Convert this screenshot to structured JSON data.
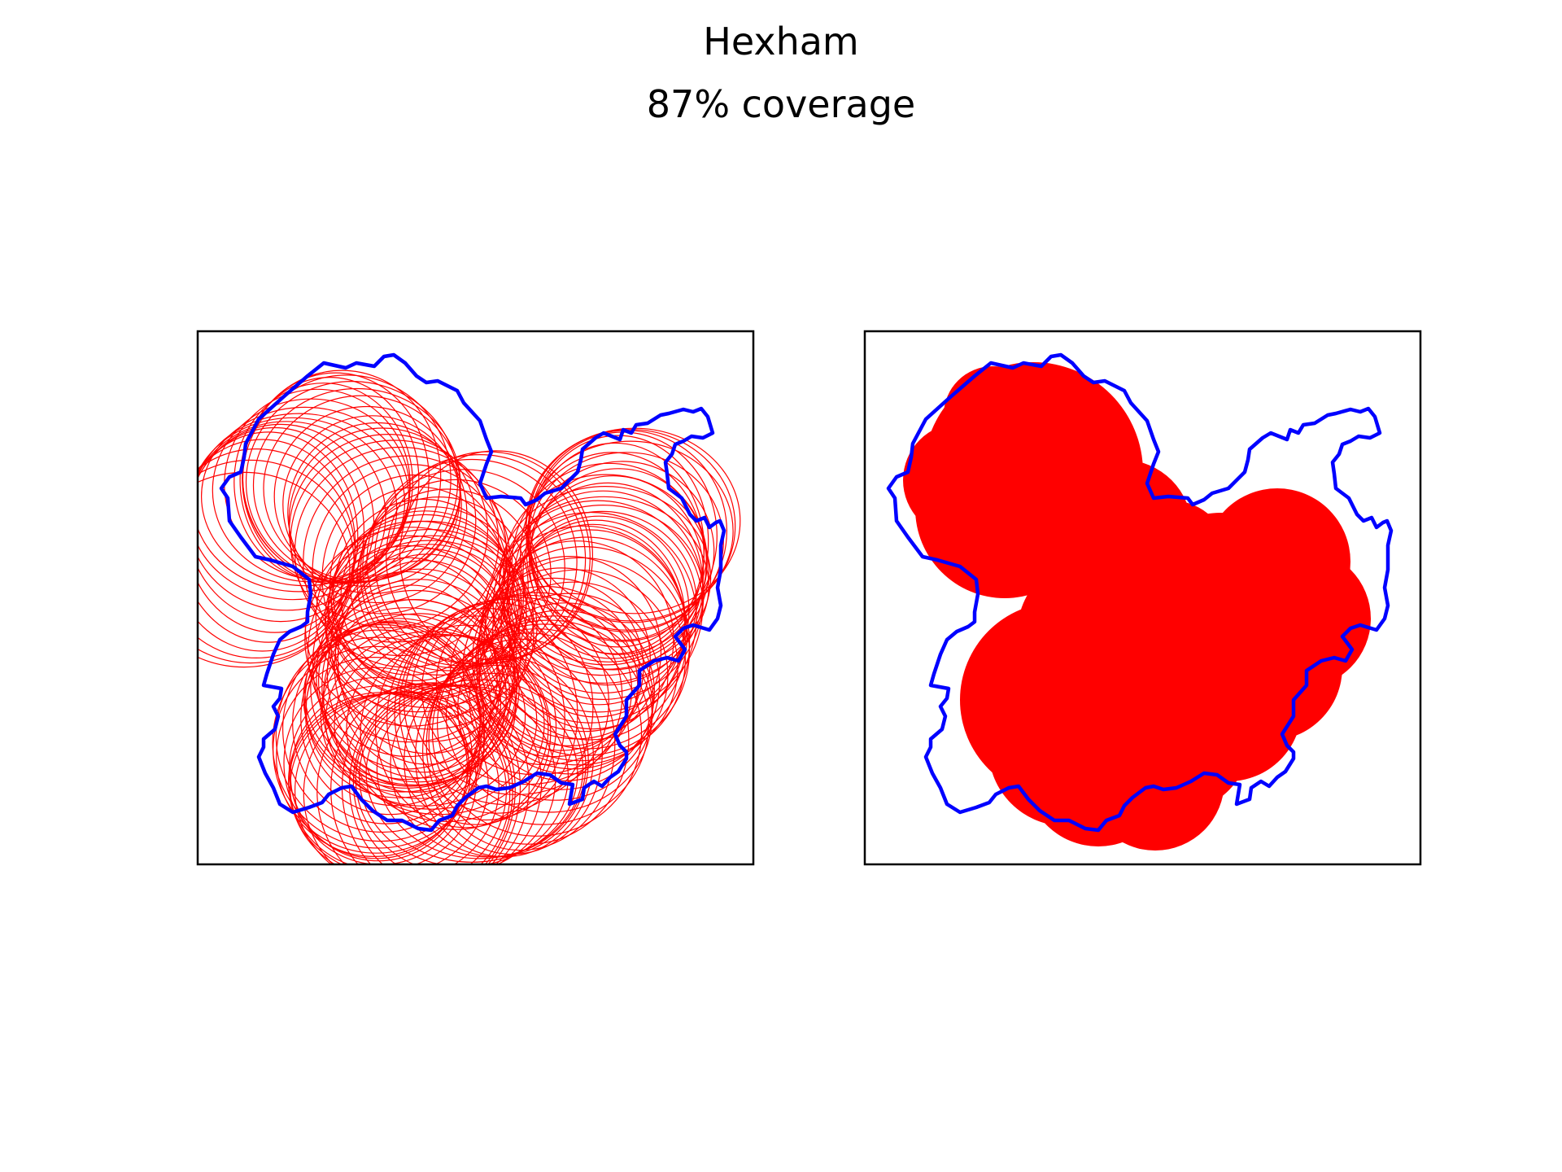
{
  "figure": {
    "title": "Hexham",
    "subtitle": "87% coverage"
  },
  "colors": {
    "boundary": "#0000ff",
    "coverage": "#ff0000",
    "frame": "#000000"
  },
  "panels": [
    {
      "name": "left",
      "style": "circle-outlines"
    },
    {
      "name": "right",
      "style": "filled-union"
    }
  ]
}
